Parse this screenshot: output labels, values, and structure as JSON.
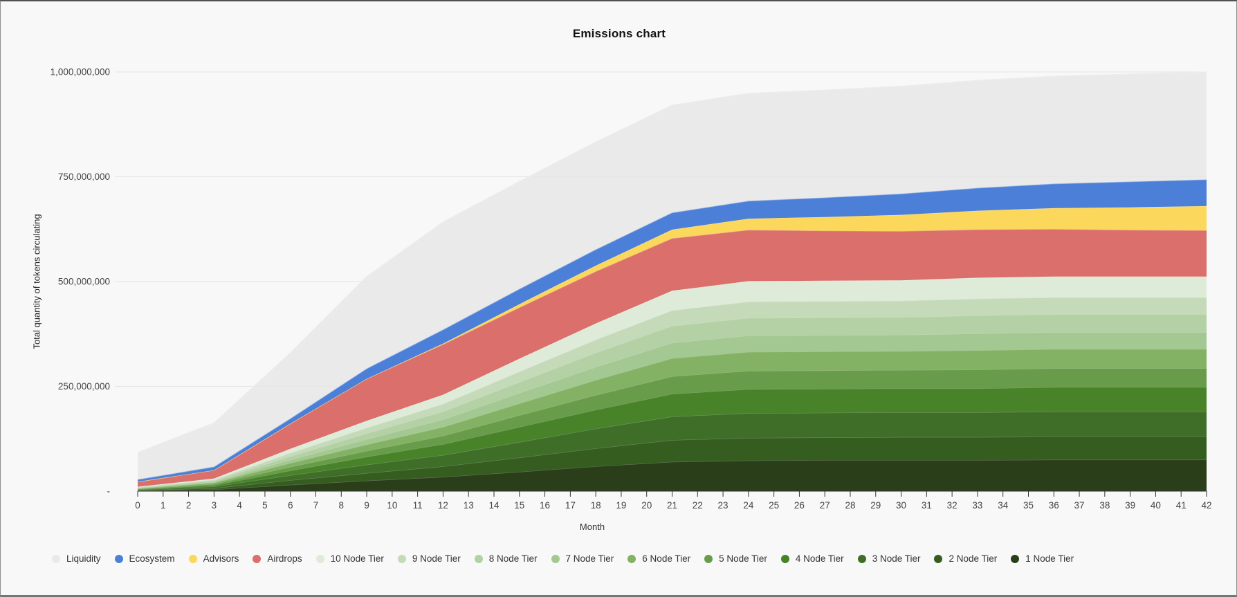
{
  "page": {
    "title": "Emissions chart",
    "y_axis_title": "Total quantity of tokens circulating",
    "x_axis_title": "Month"
  },
  "chart_data": {
    "type": "area",
    "stacked": true,
    "title": "Emissions chart",
    "xlabel": "Month",
    "ylabel": "Total quantity of tokens circulating",
    "legend_position": "bottom",
    "grid": true,
    "x_range": [
      0,
      42
    ],
    "y_range": [
      0,
      1000000000
    ],
    "values_unit": "tokens",
    "values_scale_note": "series values are millions of tokens, estimated from chart pixels",
    "y_max_millions": 1000,
    "y_ticks": [
      {
        "label": "-",
        "value": 0,
        "value_millions": 0
      },
      {
        "label": "250,000,000",
        "value": 250000000,
        "value_millions": 250
      },
      {
        "label": "500,000,000",
        "value": 500000000,
        "value_millions": 500
      },
      {
        "label": "750,000,000",
        "value": 750000000,
        "value_millions": 750
      },
      {
        "label": "1,000,000,000",
        "value": 1000000000,
        "value_millions": 1000
      }
    ],
    "x_ticks": [
      0,
      1,
      2,
      3,
      4,
      5,
      6,
      7,
      8,
      9,
      10,
      11,
      12,
      13,
      14,
      15,
      16,
      17,
      18,
      19,
      20,
      21,
      22,
      23,
      24,
      25,
      26,
      27,
      28,
      29,
      30,
      31,
      32,
      33,
      34,
      35,
      36,
      37,
      38,
      39,
      40,
      41,
      42
    ],
    "months": [
      0,
      3,
      6,
      9,
      12,
      15,
      18,
      21,
      24,
      27,
      30,
      33,
      36,
      39,
      42
    ],
    "series": [
      {
        "name": "1 Node Tier",
        "color": "#2a3e1a",
        "values": [
          1.5,
          4,
          15,
          25,
          34,
          46,
          59,
          70,
          73,
          74,
          74,
          74,
          75,
          75,
          75
        ]
      },
      {
        "name": "2 Node Tier",
        "color": "#355d20",
        "values": [
          1,
          3,
          11,
          18,
          25,
          34,
          43,
          52,
          54,
          54,
          55,
          55,
          55,
          55,
          55
        ]
      },
      {
        "name": "3 Node Tier",
        "color": "#3f6e29",
        "values": [
          1,
          4,
          12,
          20,
          27,
          37,
          47,
          56,
          59,
          59,
          59,
          59,
          60,
          60,
          60
        ]
      },
      {
        "name": "4 Node Tier",
        "color": "#488329",
        "values": [
          1,
          3,
          11,
          19,
          26,
          36,
          45,
          54,
          57,
          57,
          57,
          57,
          58,
          58,
          58
        ]
      },
      {
        "name": "5 Node Tier",
        "color": "#689c4a",
        "values": [
          1,
          3,
          9,
          14,
          20,
          28,
          35,
          42,
          44,
          44,
          44,
          45,
          45,
          45,
          45
        ]
      },
      {
        "name": "6 Node Tier",
        "color": "#84b264",
        "values": [
          1,
          3,
          9,
          15,
          21,
          28,
          36,
          43,
          45,
          45,
          45,
          46,
          46,
          46,
          46
        ]
      },
      {
        "name": "7 Node Tier",
        "color": "#a3c891",
        "values": [
          1,
          2,
          8,
          13,
          18,
          25,
          31,
          37,
          39,
          39,
          39,
          40,
          40,
          40,
          40
        ]
      },
      {
        "name": "8 Node Tier",
        "color": "#b3d1a4",
        "values": [
          1,
          3,
          8,
          14,
          19,
          26,
          34,
          40,
          42,
          42,
          42,
          43,
          43,
          43,
          43
        ]
      },
      {
        "name": "9 Node Tier",
        "color": "#c4dab8",
        "values": [
          1,
          2,
          8,
          13,
          18,
          25,
          31,
          37,
          39,
          39,
          39,
          40,
          40,
          40,
          40
        ]
      },
      {
        "name": "10 Node Tier",
        "color": "#dfebd9",
        "values": [
          1,
          3,
          10,
          17,
          22,
          31,
          39,
          47,
          49,
          49,
          49,
          50,
          50,
          50,
          50
        ]
      },
      {
        "name": "Airdrops",
        "color": "#db6f6b",
        "values": [
          12,
          20,
          60,
          100,
          120,
          122,
          124,
          125,
          122,
          119,
          117,
          115,
          113,
          111,
          110
        ]
      },
      {
        "name": "Advisors",
        "color": "#fbd75c",
        "values": [
          0,
          0,
          0,
          0,
          2,
          8,
          14,
          21,
          27,
          33,
          39,
          45,
          50,
          54,
          58
        ]
      },
      {
        "name": "Ecosystem",
        "color": "#4c80d8",
        "values": [
          5,
          8,
          12,
          24,
          33,
          36,
          38,
          40,
          42,
          46,
          50,
          54,
          58,
          61,
          63
        ]
      },
      {
        "name": "Liquidity",
        "color": "#e9e9e9",
        "area_opacity": 0.75,
        "area_fill": "#e6e6e6",
        "values": [
          65,
          105,
          157,
          220,
          257,
          257,
          257,
          257,
          257,
          257,
          257,
          257,
          257,
          257,
          257
        ]
      }
    ],
    "legend_order": [
      "Liquidity",
      "Ecosystem",
      "Advisors",
      "Airdrops",
      "10 Node Tier",
      "9 Node Tier",
      "8 Node Tier",
      "7 Node Tier",
      "6 Node Tier",
      "5 Node Tier",
      "4 Node Tier",
      "3 Node Tier",
      "2 Node Tier",
      "1 Node Tier"
    ],
    "colors": {
      "grid": "#e4e4e4",
      "axis": "#333333",
      "tick_label": "#454545",
      "background": "#f7f8f7"
    }
  }
}
